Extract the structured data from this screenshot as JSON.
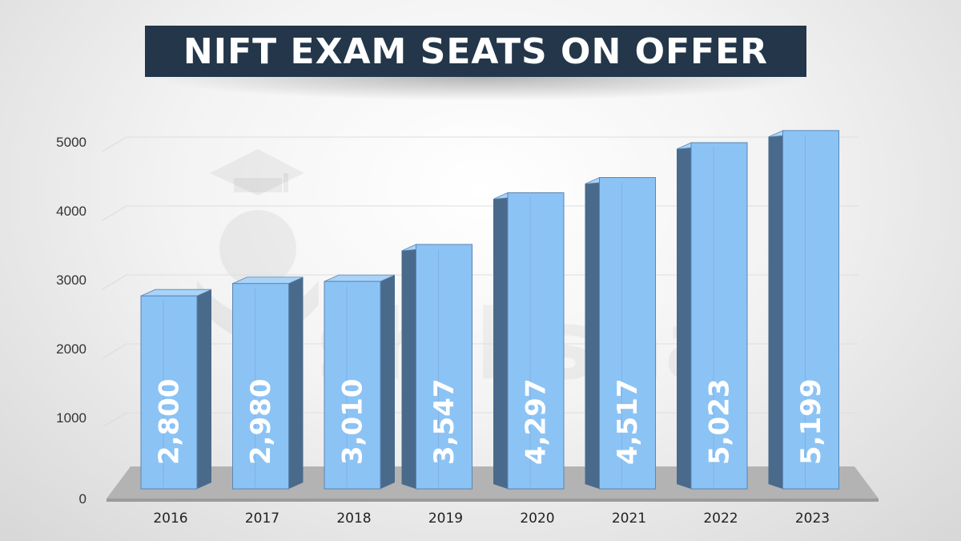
{
  "title": "NIFT EXAM SEATS ON OFFER",
  "watermark": {
    "text": "shiksha"
  },
  "colors": {
    "bar_front": "#8cc3f5",
    "bar_side": "#4a6a8c",
    "bar_top": "#a9d3f8",
    "title_bg": "#23364a",
    "title_text": "#ffffff",
    "data_label": "#ffffff"
  },
  "chart_data": {
    "type": "bar",
    "title": "NIFT EXAM SEATS ON OFFER",
    "categories": [
      "2016",
      "2017",
      "2018",
      "2019",
      "2020",
      "2021",
      "2022",
      "2023"
    ],
    "values": [
      2800,
      2980,
      3010,
      3547,
      4297,
      4517,
      5023,
      5199
    ],
    "data_labels": [
      "2,800",
      "2,980",
      "3,010",
      "3,547",
      "4,297",
      "4,517",
      "5,023",
      "5,199"
    ],
    "yticks": [
      0,
      1000,
      2000,
      3000,
      4000,
      5000
    ],
    "ylim": [
      0,
      5000
    ],
    "xlabel": "",
    "ylabel": "",
    "grid": true,
    "style": "3d-column"
  }
}
